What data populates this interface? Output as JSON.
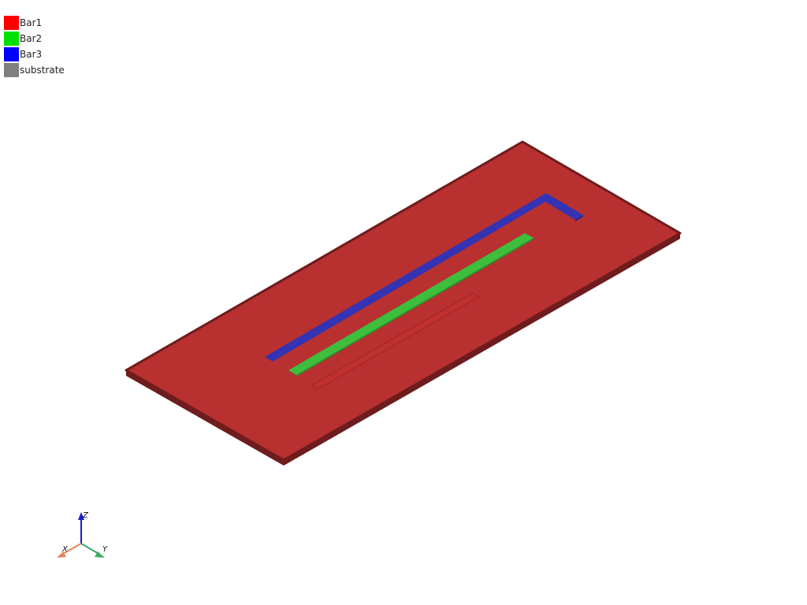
{
  "legend": {
    "items": [
      {
        "label": "Bar1",
        "color": "#ff0000"
      },
      {
        "label": "Bar2",
        "color": "#00e000"
      },
      {
        "label": "Bar3",
        "color": "#0000ff"
      },
      {
        "label": "substrate",
        "color": "#808080"
      }
    ]
  },
  "scene": {
    "substrate_color": "#b83030",
    "substrate_edge_color": "#6e1c1c",
    "bar1_color": "#c03030",
    "bar2_color": "#3dbf3d",
    "bar3_color": "#3333b3"
  },
  "axes": {
    "x_label": "X",
    "y_label": "Y",
    "z_label": "Z",
    "x_color": "#e8825a",
    "y_color": "#3fa86a",
    "z_color": "#1a1ad0"
  }
}
